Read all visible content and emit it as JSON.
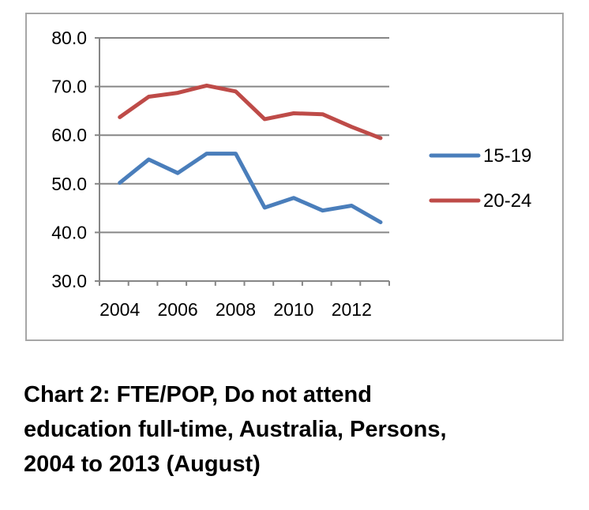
{
  "chart_data": {
    "type": "line",
    "title": "",
    "xlabel": "",
    "ylabel": "",
    "x": [
      2004,
      2005,
      2006,
      2007,
      2008,
      2009,
      2010,
      2011,
      2012,
      2013
    ],
    "xtick_labels": [
      "2004",
      "2006",
      "2008",
      "2010",
      "2012"
    ],
    "xtick_values": [
      2004,
      2006,
      2008,
      2010,
      2012
    ],
    "ylim": [
      30,
      80
    ],
    "ytick_labels": [
      "80.0",
      "70.0",
      "60.0",
      "50.0",
      "40.0",
      "30.0"
    ],
    "ytick_values": [
      80,
      70,
      60,
      50,
      40,
      30
    ],
    "grid": "horizontal",
    "legend_position": "right",
    "series": [
      {
        "name": "15-19",
        "color": "#4a7ebb",
        "values": [
          50.2,
          55.0,
          52.2,
          56.2,
          56.2,
          45.1,
          47.1,
          44.5,
          45.5,
          42.1
        ]
      },
      {
        "name": "20-24",
        "color": "#be4b48",
        "values": [
          63.7,
          67.9,
          68.7,
          70.2,
          69.0,
          63.3,
          64.5,
          64.3,
          61.7,
          59.4
        ]
      }
    ]
  },
  "caption": {
    "lines": [
      "Chart 2: FTE/POP, Do not attend",
      "education full-time, Australia, Persons,",
      "2004 to 2013 (August)"
    ]
  }
}
